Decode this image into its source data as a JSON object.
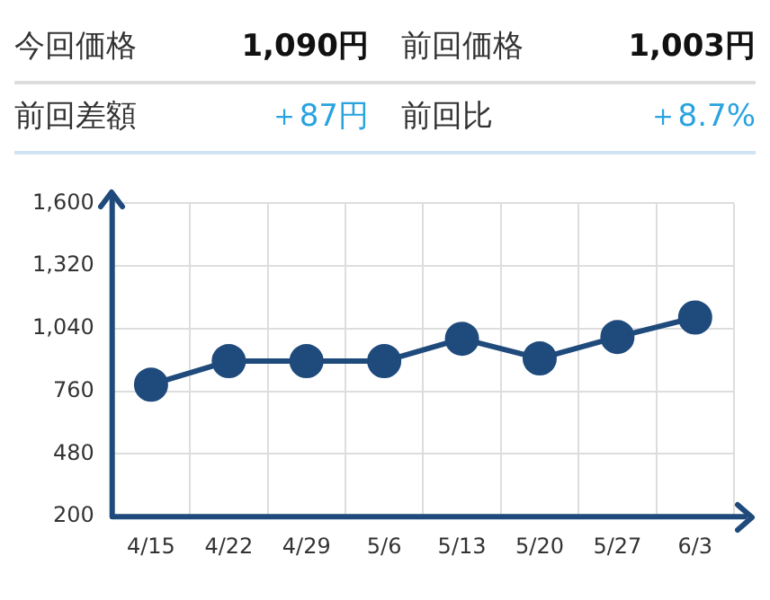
{
  "chart_data": {
    "type": "line",
    "annotations": [
      "今回価格",
      "1,090円",
      "前回価格",
      "1,003円",
      "前回差額",
      "＋87円",
      "前回比",
      "＋8.7%"
    ],
    "categories": [
      "4/15",
      "4/22",
      "4/29",
      "5/6",
      "5/13",
      "5/20",
      "5/27",
      "6/3"
    ],
    "series": [
      {
        "color": "#1f4a7c",
        "values": [
          790,
          895,
          895,
          895,
          995,
          907,
          1003,
          1090
        ]
      }
    ],
    "ylim": [
      200,
      1600
    ],
    "yticks": [
      {
        "value": 200,
        "label": "200"
      },
      {
        "value": 480,
        "label": "480"
      },
      {
        "value": 760,
        "label": "760"
      },
      {
        "value": 1040,
        "label": "1,040"
      },
      {
        "value": 1320,
        "label": "1,320"
      },
      {
        "value": 1600,
        "label": "1,600"
      }
    ],
    "grid": true,
    "marker": "circle",
    "line_style": "solid"
  }
}
